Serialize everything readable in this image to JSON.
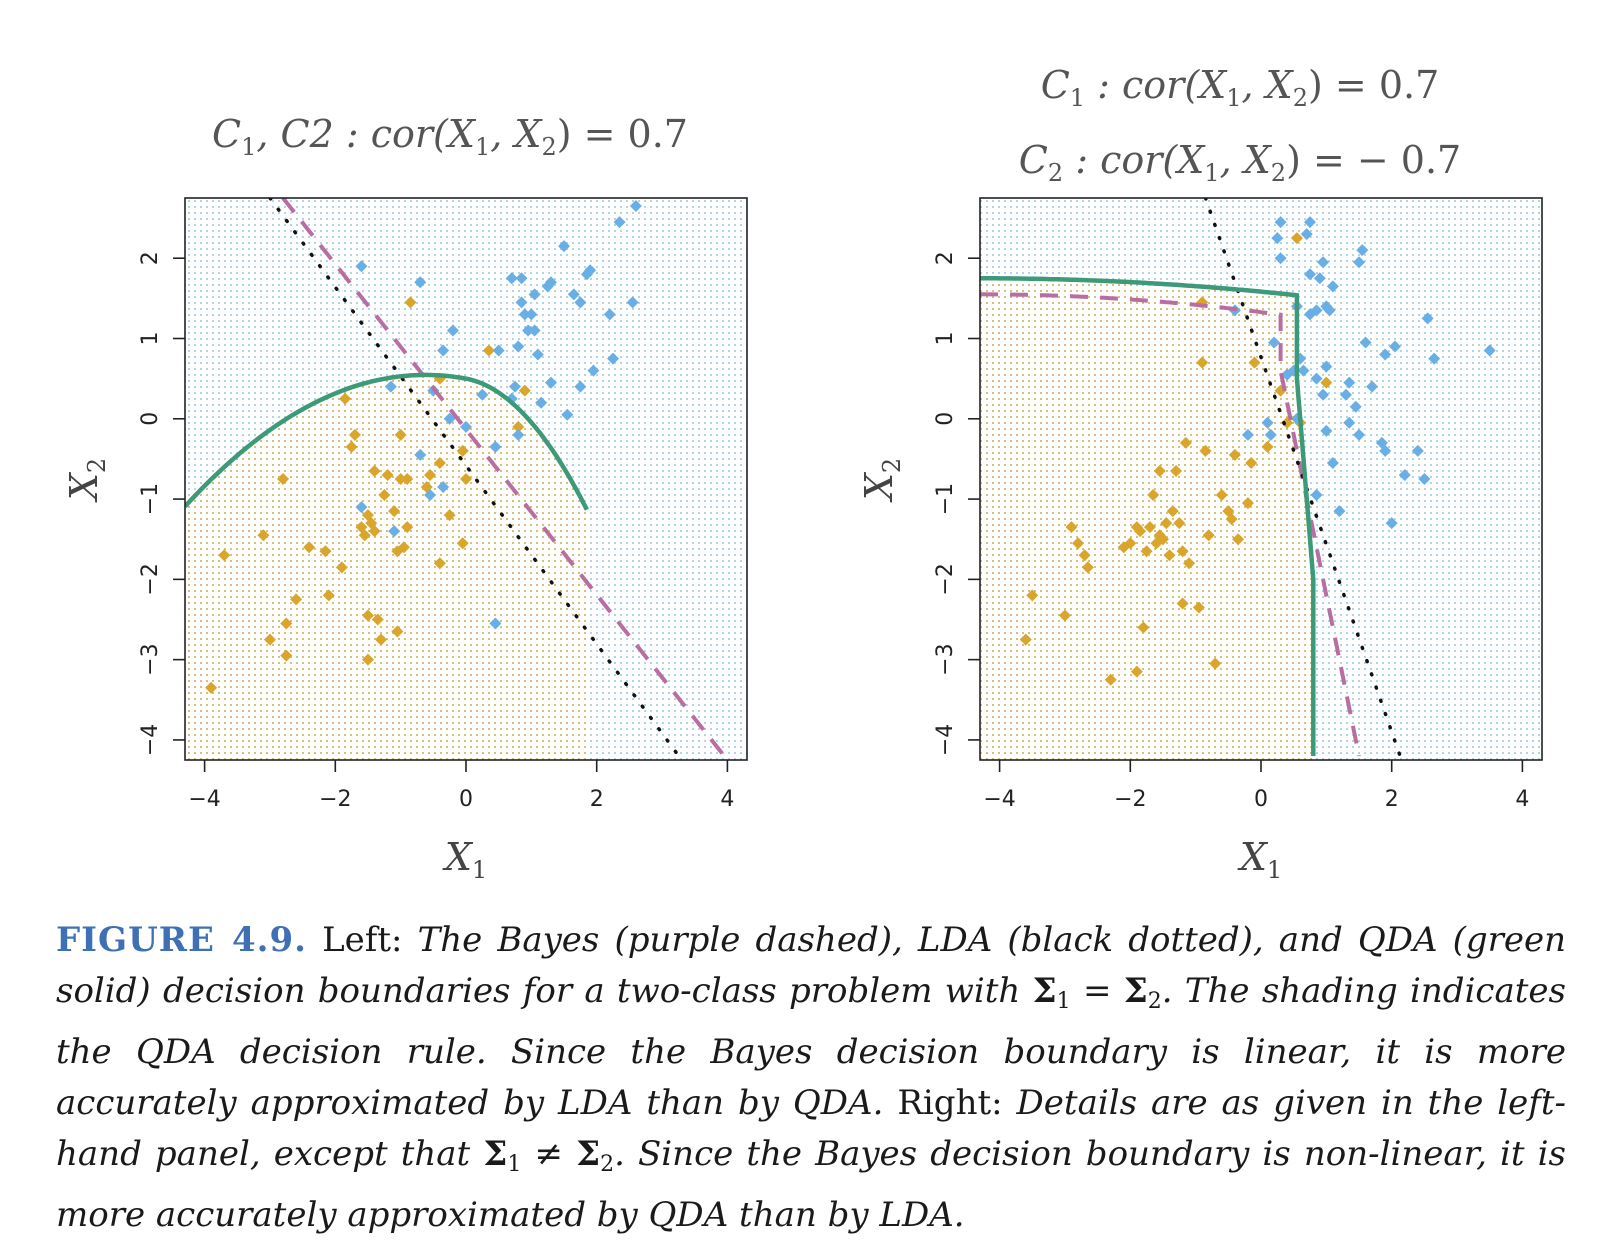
{
  "panels": [
    {
      "title_lines": [
        {
          "parts": [
            "C",
            "1",
            ", C2 : cor(X",
            "1",
            ", X",
            "2",
            ") = 0.7"
          ]
        }
      ]
    },
    {
      "title_lines": [
        {
          "parts": [
            "C",
            "1",
            " : cor(X",
            "1",
            ", X",
            "2",
            ") = 0.7"
          ]
        },
        {
          "parts": [
            "C",
            "2",
            " : cor(X",
            "1",
            ", X",
            "2",
            ") = − 0.7"
          ]
        }
      ]
    }
  ],
  "chart_data": [
    {
      "type": "scatter",
      "xlabel": "X1",
      "ylabel": "X2",
      "xlim": [
        -4.3,
        4.3
      ],
      "ylim": [
        -4.25,
        2.75
      ],
      "xticks": [
        -4,
        -2,
        0,
        2,
        4
      ],
      "yticks": [
        -4,
        -3,
        -2,
        -1,
        0,
        1,
        2
      ],
      "colors": {
        "class_orange": "#d9a52b",
        "class_blue": "#6aaee6",
        "bayes": "#b86ea2",
        "lda": "#111111",
        "qda": "#3d9a78"
      },
      "series": [
        {
          "class": "orange",
          "points": [
            [
              -3.9,
              -3.35
            ],
            [
              -3.7,
              -1.7
            ],
            [
              -3.1,
              -1.45
            ],
            [
              -3.0,
              -2.75
            ],
            [
              -2.8,
              -0.75
            ],
            [
              -2.75,
              -2.55
            ],
            [
              -2.75,
              -2.95
            ],
            [
              -2.6,
              -2.25
            ],
            [
              -2.4,
              -1.6
            ],
            [
              -2.15,
              -1.65
            ],
            [
              -2.1,
              -2.2
            ],
            [
              -1.9,
              -1.85
            ],
            [
              -1.85,
              0.25
            ],
            [
              -1.75,
              -0.35
            ],
            [
              -1.7,
              -0.2
            ],
            [
              -1.6,
              -1.35
            ],
            [
              -1.55,
              -1.45
            ],
            [
              -1.5,
              -1.2
            ],
            [
              -1.5,
              -2.45
            ],
            [
              -1.5,
              -3.0
            ],
            [
              -1.45,
              -1.3
            ],
            [
              -1.4,
              -1.4
            ],
            [
              -1.4,
              -0.65
            ],
            [
              -1.35,
              -2.5
            ],
            [
              -1.3,
              -2.75
            ],
            [
              -1.25,
              -0.95
            ],
            [
              -1.2,
              -0.7
            ],
            [
              -1.1,
              -1.15
            ],
            [
              -1.05,
              -1.65
            ],
            [
              -1.05,
              -2.65
            ],
            [
              -1.0,
              -0.75
            ],
            [
              -1.0,
              -0.2
            ],
            [
              -0.95,
              -1.6
            ],
            [
              -0.9,
              -1.35
            ],
            [
              -0.9,
              -0.75
            ],
            [
              -0.85,
              1.45
            ],
            [
              -0.6,
              -0.85
            ],
            [
              -0.55,
              -0.7
            ],
            [
              -0.4,
              0.5
            ],
            [
              -0.4,
              -0.55
            ],
            [
              -0.4,
              -1.8
            ],
            [
              -0.25,
              -1.2
            ],
            [
              -0.05,
              -0.4
            ],
            [
              -0.05,
              -1.55
            ],
            [
              0.0,
              -0.75
            ],
            [
              0.35,
              0.85
            ],
            [
              0.8,
              -0.1
            ],
            [
              0.9,
              0.35
            ]
          ]
        },
        {
          "class": "blue",
          "points": [
            [
              -1.6,
              1.9
            ],
            [
              -1.6,
              -1.1
            ],
            [
              -1.15,
              0.4
            ],
            [
              -1.1,
              -1.4
            ],
            [
              -0.7,
              1.7
            ],
            [
              -0.7,
              -0.45
            ],
            [
              -0.55,
              -0.95
            ],
            [
              -0.5,
              0.35
            ],
            [
              -0.35,
              -0.85
            ],
            [
              -0.35,
              0.85
            ],
            [
              -0.25,
              0.0
            ],
            [
              -0.2,
              1.1
            ],
            [
              0.0,
              -0.1
            ],
            [
              0.25,
              0.3
            ],
            [
              0.45,
              -0.35
            ],
            [
              0.45,
              -2.55
            ],
            [
              0.5,
              0.85
            ],
            [
              0.7,
              1.75
            ],
            [
              0.7,
              0.25
            ],
            [
              0.75,
              0.4
            ],
            [
              0.8,
              -0.2
            ],
            [
              0.8,
              0.9
            ],
            [
              0.85,
              1.75
            ],
            [
              0.85,
              1.45
            ],
            [
              0.9,
              1.3
            ],
            [
              0.95,
              1.1
            ],
            [
              1.0,
              1.3
            ],
            [
              1.05,
              1.1
            ],
            [
              1.05,
              1.55
            ],
            [
              1.1,
              0.8
            ],
            [
              1.15,
              0.2
            ],
            [
              1.25,
              1.65
            ],
            [
              1.3,
              1.7
            ],
            [
              1.3,
              0.45
            ],
            [
              1.5,
              2.15
            ],
            [
              1.55,
              0.05
            ],
            [
              1.65,
              1.55
            ],
            [
              1.75,
              1.45
            ],
            [
              1.75,
              0.4
            ],
            [
              1.85,
              1.8
            ],
            [
              1.9,
              1.85
            ],
            [
              1.95,
              0.6
            ],
            [
              2.2,
              1.3
            ],
            [
              2.25,
              0.75
            ],
            [
              2.35,
              2.45
            ],
            [
              2.55,
              1.45
            ],
            [
              2.6,
              2.65
            ]
          ]
        }
      ]
    },
    {
      "type": "scatter",
      "xlabel": "X1",
      "ylabel": "X2",
      "xlim": [
        -4.3,
        4.3
      ],
      "ylim": [
        -4.25,
        2.75
      ],
      "xticks": [
        -4,
        -2,
        0,
        2,
        4
      ],
      "yticks": [
        -4,
        -3,
        -2,
        -1,
        0,
        1,
        2
      ],
      "colors": {
        "class_orange": "#d9a52b",
        "class_blue": "#6aaee6",
        "bayes": "#b86ea2",
        "lda": "#111111",
        "qda": "#3d9a78"
      },
      "series": [
        {
          "class": "orange",
          "points": [
            [
              -3.6,
              -2.75
            ],
            [
              -3.5,
              -2.2
            ],
            [
              -3.0,
              -2.45
            ],
            [
              -2.9,
              -1.35
            ],
            [
              -2.8,
              -1.55
            ],
            [
              -2.7,
              -1.7
            ],
            [
              -2.65,
              -1.85
            ],
            [
              -2.3,
              -3.25
            ],
            [
              -2.1,
              -1.6
            ],
            [
              -2.0,
              -1.55
            ],
            [
              -1.9,
              -1.35
            ],
            [
              -1.9,
              -3.15
            ],
            [
              -1.85,
              -1.4
            ],
            [
              -1.8,
              -2.6
            ],
            [
              -1.75,
              -1.65
            ],
            [
              -1.7,
              -1.35
            ],
            [
              -1.65,
              -0.95
            ],
            [
              -1.6,
              -1.55
            ],
            [
              -1.55,
              -1.45
            ],
            [
              -1.55,
              -0.65
            ],
            [
              -1.5,
              -1.5
            ],
            [
              -1.45,
              -1.3
            ],
            [
              -1.4,
              -1.7
            ],
            [
              -1.35,
              -1.15
            ],
            [
              -1.3,
              -0.65
            ],
            [
              -1.25,
              -1.3
            ],
            [
              -1.2,
              -1.65
            ],
            [
              -1.2,
              -2.3
            ],
            [
              -1.15,
              -0.3
            ],
            [
              -1.1,
              -1.8
            ],
            [
              -0.95,
              -2.35
            ],
            [
              -0.9,
              1.45
            ],
            [
              -0.9,
              0.7
            ],
            [
              -0.85,
              -0.4
            ],
            [
              -0.8,
              -1.45
            ],
            [
              -0.7,
              -3.05
            ],
            [
              -0.6,
              -0.95
            ],
            [
              -0.5,
              -1.15
            ],
            [
              -0.45,
              -1.25
            ],
            [
              -0.4,
              -0.45
            ],
            [
              -0.35,
              -1.5
            ],
            [
              -0.2,
              -1.05
            ],
            [
              -0.15,
              -0.55
            ],
            [
              -0.1,
              0.7
            ],
            [
              0.1,
              -0.35
            ],
            [
              0.3,
              0.35
            ],
            [
              0.4,
              -0.05
            ],
            [
              0.55,
              2.25
            ],
            [
              0.6,
              -0.05
            ],
            [
              1.0,
              0.45
            ]
          ]
        },
        {
          "class": "blue",
          "points": [
            [
              -0.4,
              1.35
            ],
            [
              -0.2,
              -0.2
            ],
            [
              0.1,
              -0.05
            ],
            [
              0.15,
              -0.2
            ],
            [
              0.2,
              0.95
            ],
            [
              0.25,
              2.25
            ],
            [
              0.3,
              2.45
            ],
            [
              0.3,
              2.0
            ],
            [
              0.4,
              0.55
            ],
            [
              0.5,
              0.6
            ],
            [
              0.55,
              0.0
            ],
            [
              0.55,
              1.4
            ],
            [
              0.6,
              0.75
            ],
            [
              0.65,
              0.6
            ],
            [
              0.7,
              2.3
            ],
            [
              0.75,
              2.45
            ],
            [
              0.75,
              1.8
            ],
            [
              0.75,
              1.3
            ],
            [
              0.85,
              1.35
            ],
            [
              0.85,
              0.5
            ],
            [
              0.85,
              -0.95
            ],
            [
              0.9,
              1.75
            ],
            [
              0.95,
              1.95
            ],
            [
              0.95,
              0.3
            ],
            [
              1.0,
              1.4
            ],
            [
              1.0,
              0.65
            ],
            [
              1.0,
              -0.15
            ],
            [
              1.05,
              1.35
            ],
            [
              1.1,
              1.65
            ],
            [
              1.1,
              -0.55
            ],
            [
              1.2,
              -1.15
            ],
            [
              1.3,
              0.3
            ],
            [
              1.35,
              -0.05
            ],
            [
              1.35,
              0.45
            ],
            [
              1.45,
              0.15
            ],
            [
              1.5,
              -0.2
            ],
            [
              1.5,
              1.95
            ],
            [
              1.55,
              2.1
            ],
            [
              1.6,
              0.95
            ],
            [
              1.7,
              0.4
            ],
            [
              1.85,
              -0.3
            ],
            [
              1.9,
              0.8
            ],
            [
              1.9,
              -0.4
            ],
            [
              2.0,
              -1.3
            ],
            [
              2.05,
              0.9
            ],
            [
              2.2,
              -0.7
            ],
            [
              2.4,
              -0.4
            ],
            [
              2.5,
              -0.75
            ],
            [
              2.55,
              1.25
            ],
            [
              2.65,
              0.75
            ],
            [
              3.5,
              0.85
            ]
          ]
        }
      ]
    }
  ],
  "caption": {
    "label": "FIGURE 4.9.",
    "left_label": "Left:",
    "s1": "The Bayes (purple dashed), LDA (black dotted), and QDA (green solid) decision boundaries for a two-class problem with",
    "sigma": "Σ",
    "sub1": "1",
    "sub2": "2",
    "eq": "=",
    "neq": "≠",
    "s2": ". The shading indicates the QDA decision rule. Since the Bayes decision boundary is linear, it is more accurately approximated by LDA than by QDA.",
    "right_label": "Right:",
    "s3": "Details are as given in the left-hand panel, except that",
    "s4": ". Since the Bayes decision boundary is non-linear, it is more accurately approximated by QDA than by LDA."
  }
}
